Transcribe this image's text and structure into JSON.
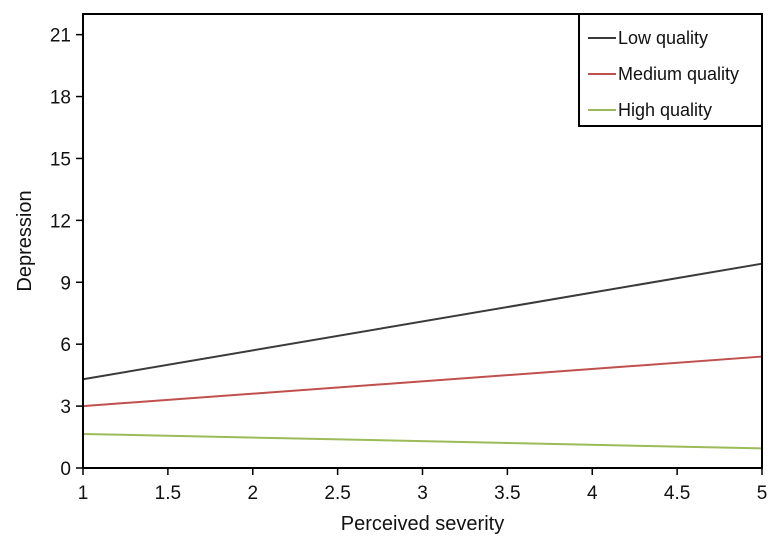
{
  "chart_data": {
    "type": "line",
    "xlabel": "Perceived severity",
    "ylabel": "Depression",
    "xlim": [
      1,
      5
    ],
    "ylim": [
      0,
      22
    ],
    "x_ticks": [
      1,
      1.5,
      2,
      2.5,
      3,
      3.5,
      4,
      4.5,
      5
    ],
    "x_tick_labels": [
      "1",
      "1.5",
      "2",
      "2.5",
      "3",
      "3.5",
      "4",
      "4.5",
      "5"
    ],
    "y_ticks": [
      0,
      3,
      6,
      9,
      12,
      15,
      18,
      21
    ],
    "y_tick_labels": [
      "0",
      "3",
      "6",
      "9",
      "12",
      "15",
      "18",
      "21"
    ],
    "grid": false,
    "legend_position": "top-right",
    "series": [
      {
        "name": "Low quality",
        "color": "#3a3a3a",
        "x": [
          1,
          5
        ],
        "y": [
          4.3,
          9.9
        ]
      },
      {
        "name": "Medium quality",
        "color": "#c0504d",
        "x": [
          1,
          5
        ],
        "y": [
          3.0,
          5.4
        ]
      },
      {
        "name": "High quality",
        "color": "#9bbb59",
        "x": [
          1,
          5
        ],
        "y": [
          1.65,
          0.95
        ]
      }
    ]
  }
}
